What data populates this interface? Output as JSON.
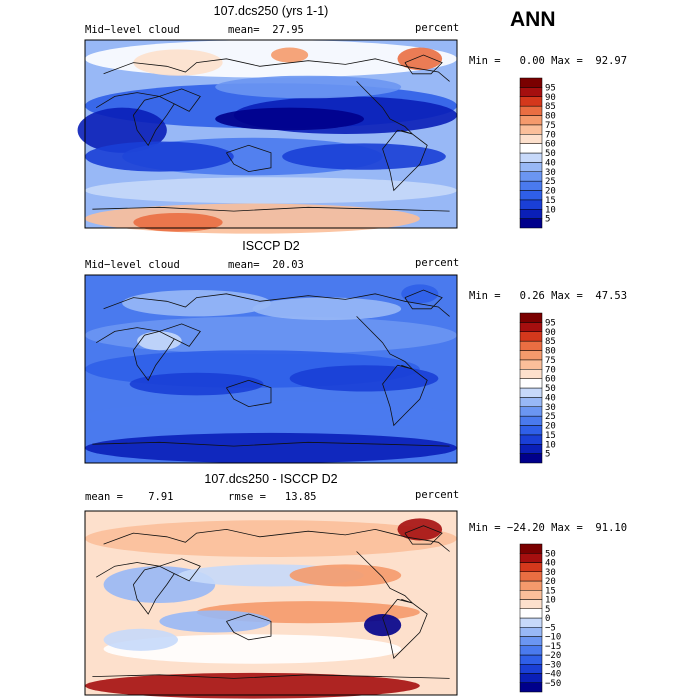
{
  "season": "ANN",
  "panels": [
    {
      "title": "107.dcs250 (yrs 1-1)",
      "left_label": "Mid−level cloud",
      "center_label": "mean=  27.95",
      "units": "percent",
      "minmax": "Min =   0.00 Max =  92.97"
    },
    {
      "title": "ISCCP D2",
      "left_label": "Mid−level cloud",
      "center_label": "mean=  20.03",
      "units": "percent",
      "minmax": "Min =   0.26 Max =  47.53"
    },
    {
      "title": "107.dcs250 - ISCCP D2",
      "left_label": "mean =    7.91",
      "center_label": "rmse =   13.85",
      "units": "percent",
      "minmax": "Min = −24.20 Max =  91.10"
    }
  ],
  "chart_data": [
    {
      "type": "heatmap",
      "title": "107.dcs250 (yrs 1-1)",
      "field": "Mid-level cloud",
      "units": "percent",
      "mean": 27.95,
      "min": 0.0,
      "max": 92.97,
      "levels": [
        "5",
        "10",
        "15",
        "20",
        "25",
        "30",
        "40",
        "50",
        "60",
        "70",
        "75",
        "80",
        "85",
        "90",
        "95"
      ],
      "colors": [
        "#00008b",
        "#0a1fb8",
        "#1a3fd6",
        "#2f5fe8",
        "#4a7aee",
        "#6b96f2",
        "#98b8f6",
        "#c7d9fa",
        "#ffffff",
        "#fde0cc",
        "#fbbf9a",
        "#f59a6c",
        "#ea6e42",
        "#d4381c",
        "#a50f0f",
        "#7a0000"
      ]
    },
    {
      "type": "heatmap",
      "title": "ISCCP D2",
      "field": "Mid-level cloud",
      "units": "percent",
      "mean": 20.03,
      "min": 0.26,
      "max": 47.53,
      "levels": [
        "5",
        "10",
        "15",
        "20",
        "25",
        "30",
        "40",
        "50",
        "60",
        "70",
        "75",
        "80",
        "85",
        "90",
        "95"
      ],
      "colors": [
        "#00008b",
        "#0a1fb8",
        "#1a3fd6",
        "#2f5fe8",
        "#4a7aee",
        "#6b96f2",
        "#98b8f6",
        "#c7d9fa",
        "#ffffff",
        "#fde0cc",
        "#fbbf9a",
        "#f59a6c",
        "#ea6e42",
        "#d4381c",
        "#a50f0f",
        "#7a0000"
      ]
    },
    {
      "type": "heatmap",
      "title": "107.dcs250 - ISCCP D2",
      "units": "percent",
      "mean": 7.91,
      "rmse": 13.85,
      "min": -24.2,
      "max": 91.1,
      "levels": [
        "−50",
        "−40",
        "−30",
        "−20",
        "−15",
        "−10",
        "−5",
        "0",
        "5",
        "10",
        "15",
        "20",
        "30",
        "40",
        "50"
      ],
      "colors": [
        "#00008b",
        "#0a1fb8",
        "#1a3fd6",
        "#2f5fe8",
        "#4a7aee",
        "#6b96f2",
        "#98b8f6",
        "#c7d9fa",
        "#ffffff",
        "#fde0cc",
        "#fbbf9a",
        "#f59a6c",
        "#ea6e42",
        "#d4381c",
        "#a50f0f",
        "#7a0000"
      ]
    }
  ]
}
